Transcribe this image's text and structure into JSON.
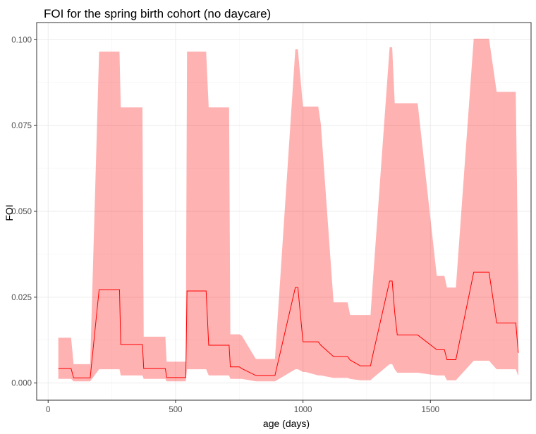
{
  "chart_data": {
    "type": "area",
    "title": "FOI for the spring birth cohort (no daycare)",
    "xlabel": "age (days)",
    "ylabel": "FOI",
    "xlim": [
      -45,
      1895
    ],
    "ylim": [
      -0.005,
      0.105
    ],
    "x_ticks": [
      0,
      500,
      1000,
      1500
    ],
    "x_tick_labels": [
      "0",
      "500",
      "1000",
      "1500"
    ],
    "y_ticks": [
      0.0,
      0.025,
      0.05,
      0.075,
      0.1
    ],
    "y_tick_labels": [
      "0.000",
      "0.025",
      "0.050",
      "0.075",
      "0.100"
    ],
    "grid": true,
    "colors": {
      "ribbon": "#ff0000",
      "ribbon_opacity": 0.3,
      "line": "#ff0000"
    },
    "series": [
      {
        "type": "line",
        "x": [
          40,
          90,
          100,
          165,
          200,
          280,
          285,
          370,
          375,
          460,
          465,
          540,
          545,
          620,
          630,
          710,
          715,
          750,
          760,
          815,
          820,
          880,
          890,
          970,
          980,
          1000,
          1010,
          1060,
          1070,
          1120,
          1130,
          1175,
          1185,
          1225,
          1235,
          1265,
          1275,
          1340,
          1350,
          1360,
          1370,
          1440,
          1450,
          1525,
          1530,
          1555,
          1565,
          1590,
          1600,
          1670,
          1680,
          1725,
          1730,
          1760,
          1770,
          1835,
          1845
        ],
        "y": [
          0.0042,
          0.0042,
          0.0015,
          0.0015,
          0.0272,
          0.0272,
          0.0112,
          0.0112,
          0.0042,
          0.0042,
          0.0016,
          0.0016,
          0.0268,
          0.0268,
          0.011,
          0.011,
          0.0047,
          0.0047,
          0.0042,
          0.0022,
          0.0022,
          0.0022,
          0.0022,
          0.0278,
          0.0278,
          0.012,
          0.012,
          0.012,
          0.011,
          0.0077,
          0.0077,
          0.0077,
          0.0067,
          0.005,
          0.005,
          0.005,
          0.0085,
          0.0297,
          0.0297,
          0.0205,
          0.014,
          0.014,
          0.014,
          0.0097,
          0.0097,
          0.0097,
          0.0068,
          0.0068,
          0.0068,
          0.0323,
          0.0323,
          0.0323,
          0.0323,
          0.0175,
          0.0175,
          0.0175,
          0.0088
        ]
      },
      {
        "type": "ribbon",
        "x": [
          40,
          90,
          100,
          165,
          200,
          280,
          285,
          370,
          375,
          460,
          465,
          540,
          545,
          620,
          630,
          710,
          715,
          750,
          760,
          815,
          820,
          880,
          890,
          970,
          980,
          1000,
          1010,
          1060,
          1070,
          1120,
          1130,
          1175,
          1185,
          1225,
          1235,
          1265,
          1275,
          1340,
          1350,
          1360,
          1370,
          1440,
          1450,
          1525,
          1530,
          1555,
          1565,
          1590,
          1600,
          1670,
          1680,
          1725,
          1730,
          1760,
          1770,
          1835,
          1845
        ],
        "lower": [
          0.0012,
          0.0012,
          0.0005,
          0.0005,
          0.004,
          0.004,
          0.0022,
          0.0022,
          0.0012,
          0.0012,
          0.0005,
          0.0005,
          0.004,
          0.004,
          0.0022,
          0.0022,
          0.0012,
          0.0012,
          0.0012,
          0.0005,
          0.0005,
          0.0005,
          0.0005,
          0.004,
          0.004,
          0.0032,
          0.0032,
          0.0022,
          0.0022,
          0.0015,
          0.0015,
          0.0015,
          0.0012,
          0.0008,
          0.0008,
          0.0008,
          0.0015,
          0.0055,
          0.0055,
          0.004,
          0.003,
          0.003,
          0.003,
          0.0022,
          0.0022,
          0.0022,
          0.0008,
          0.0008,
          0.0008,
          0.0065,
          0.0065,
          0.0065,
          0.0065,
          0.004,
          0.004,
          0.004,
          0.002
        ],
        "upper": [
          0.0132,
          0.0132,
          0.0055,
          0.0055,
          0.0965,
          0.0965,
          0.0803,
          0.0803,
          0.0135,
          0.0135,
          0.0062,
          0.0062,
          0.0965,
          0.0965,
          0.0803,
          0.0803,
          0.0142,
          0.0142,
          0.0138,
          0.007,
          0.007,
          0.007,
          0.007,
          0.0972,
          0.0972,
          0.0805,
          0.0805,
          0.0805,
          0.0755,
          0.0235,
          0.0235,
          0.0235,
          0.0198,
          0.0198,
          0.0198,
          0.0198,
          0.0305,
          0.0978,
          0.0978,
          0.0815,
          0.0815,
          0.0815,
          0.0815,
          0.0312,
          0.0312,
          0.0312,
          0.0278,
          0.0278,
          0.0278,
          0.1003,
          0.1003,
          0.1003,
          0.1003,
          0.0848,
          0.0848,
          0.0848,
          0.0278
        ]
      }
    ]
  }
}
